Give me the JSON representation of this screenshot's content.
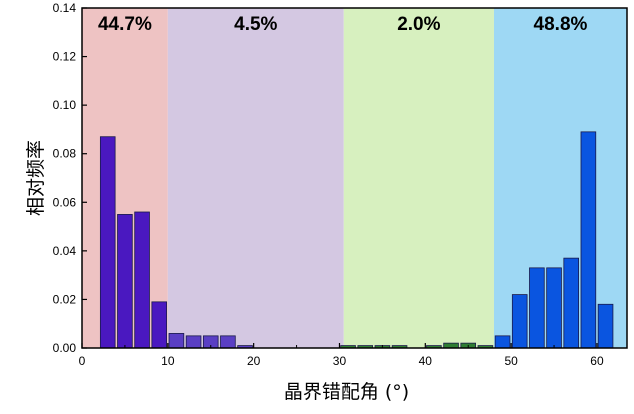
{
  "chart_data": {
    "type": "bar",
    "xlabel": "晶界错配角 (°)",
    "ylabel": "相对频率",
    "xlim": [
      0,
      63.5
    ],
    "ylim": [
      0,
      0.14
    ],
    "x_ticks": [
      0,
      10,
      20,
      30,
      40,
      50,
      60
    ],
    "y_ticks": [
      0.0,
      0.02,
      0.04,
      0.06,
      0.08,
      0.1,
      0.12,
      0.14
    ],
    "bin_width": 2,
    "regions": [
      {
        "label": "44.7%",
        "x_start": 0,
        "x_end": 10,
        "color": "#eec3c3"
      },
      {
        "label": "4.5%",
        "x_start": 10,
        "x_end": 30.5,
        "color": "#d4c8e2"
      },
      {
        "label": "2.0%",
        "x_start": 30.5,
        "x_end": 48,
        "color": "#d7f0bf"
      },
      {
        "label": "48.8%",
        "x_start": 48,
        "x_end": 63.5,
        "color": "#9ed8f4"
      }
    ],
    "series": [
      {
        "color": "#4a18c0",
        "x": [
          3,
          5,
          7,
          9
        ],
        "values": [
          0.087,
          0.055,
          0.056,
          0.019
        ]
      },
      {
        "color": "#5a3fc4",
        "x": [
          11,
          13,
          15,
          17,
          19
        ],
        "values": [
          0.006,
          0.005,
          0.005,
          0.005,
          0.001
        ]
      },
      {
        "color": "#2e7d32",
        "x": [
          31,
          33,
          35,
          37,
          41,
          43,
          45,
          47
        ],
        "values": [
          0.001,
          0.001,
          0.001,
          0.001,
          0.001,
          0.002,
          0.002,
          0.001
        ]
      },
      {
        "color": "#0a55e0",
        "x": [
          49,
          51,
          53,
          55,
          57,
          59,
          61
        ],
        "values": [
          0.005,
          0.022,
          0.033,
          0.033,
          0.037,
          0.089,
          0.018
        ]
      }
    ]
  }
}
